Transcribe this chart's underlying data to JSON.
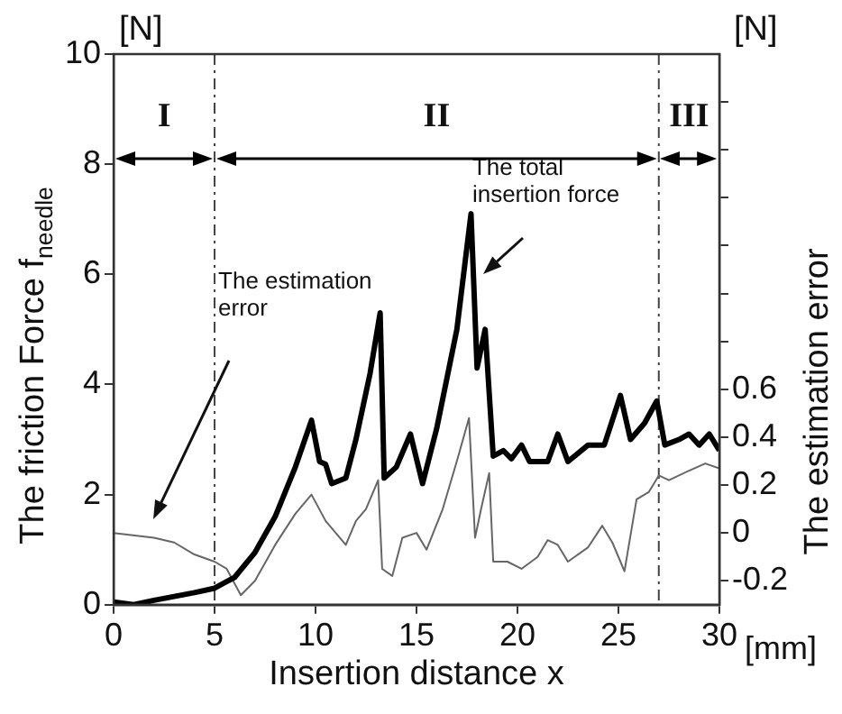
{
  "chart_data": {
    "type": "line",
    "xlabel": "Insertion distance x",
    "ylabel": "The friction Force f$_{needle}$",
    "y2label": "The estimation error",
    "xlim": [
      0,
      30
    ],
    "xticks": [
      0,
      5,
      10,
      15,
      20,
      25,
      30
    ],
    "ylim": [
      0,
      10
    ],
    "yticks": [
      0,
      2,
      4,
      6,
      8,
      10
    ],
    "y2lim": [
      -0.3,
      2.0
    ],
    "y2ticks": [
      -0.2,
      0,
      0.2,
      0.4,
      0.6,
      {
        "value": 0.8,
        "label": null
      },
      {
        "value": 1.0,
        "label": null
      },
      {
        "value": 1.2,
        "label": null
      },
      {
        "value": 1.4,
        "label": null
      },
      {
        "value": 1.6,
        "label": null
      },
      {
        "value": 1.8,
        "label": null
      }
    ],
    "grid": false,
    "legend": false,
    "marker": "none",
    "line_style": "solid",
    "series": [
      {
        "color": "#000000",
        "x": [
          0,
          1,
          2,
          3,
          4,
          5,
          6,
          7,
          8,
          9,
          9.8,
          10.2,
          10.5,
          10.8,
          11.5,
          12,
          12.7,
          13.2,
          13.4,
          14,
          14.7,
          15.3,
          16,
          17,
          17.7,
          18.0,
          18.4,
          18.8,
          19.3,
          19.7,
          20.2,
          20.6,
          21.5,
          22,
          22.5,
          23.5,
          24.3,
          25.1,
          25.6,
          26.3,
          26.9,
          27.3,
          28,
          28.5,
          29,
          29.5,
          30
        ],
        "values": [
          0.05,
          0.0,
          0.08,
          0.15,
          0.22,
          0.3,
          0.5,
          0.95,
          1.6,
          2.5,
          3.35,
          2.6,
          2.55,
          2.2,
          2.3,
          3.0,
          4.2,
          5.3,
          2.3,
          2.5,
          3.1,
          2.2,
          3.2,
          5.0,
          7.1,
          4.3,
          5.0,
          2.7,
          2.8,
          2.65,
          2.9,
          2.6,
          2.6,
          3.1,
          2.6,
          2.9,
          2.9,
          3.8,
          3.0,
          3.3,
          3.7,
          2.9,
          3.0,
          3.1,
          2.9,
          3.1,
          2.8
        ]
      },
      {
        "color": "#666666",
        "axis": "y2",
        "x": [
          0,
          2,
          3,
          4,
          5,
          5.6,
          6.3,
          7,
          8,
          9,
          9.8,
          10.5,
          11,
          11.5,
          12,
          12.5,
          13.1,
          13.3,
          13.8,
          14.3,
          15,
          15.5,
          16.3,
          17,
          17.6,
          17.9,
          18.2,
          18.6,
          18.8,
          19.5,
          20.2,
          21,
          21.5,
          22,
          22.5,
          23.5,
          24.2,
          24.7,
          25.3,
          25.9,
          26.5,
          27,
          27.5,
          28.5,
          29.3,
          30
        ],
        "values": [
          0.0,
          -0.02,
          -0.04,
          -0.09,
          -0.12,
          -0.15,
          -0.26,
          -0.2,
          -0.05,
          0.08,
          0.16,
          0.05,
          0.0,
          -0.05,
          0.05,
          0.1,
          0.22,
          -0.15,
          -0.18,
          -0.02,
          0.0,
          -0.07,
          0.1,
          0.3,
          0.48,
          -0.02,
          0.1,
          0.25,
          -0.12,
          -0.12,
          -0.15,
          -0.1,
          -0.03,
          -0.05,
          -0.12,
          -0.06,
          0.03,
          -0.04,
          -0.16,
          0.14,
          0.17,
          0.24,
          0.22,
          0.26,
          0.29,
          0.27
        ]
      }
    ],
    "ref_lines": [
      {
        "axis": "x",
        "value": 5,
        "line_style": "dashdot"
      },
      {
        "axis": "x",
        "value": 27,
        "line_style": "dashdot"
      }
    ],
    "annotations": [
      "[N]",
      "[N]",
      "[mm]",
      "I",
      "II",
      "III",
      "The estimation error",
      {
        "text": "The total insertion force",
        "x": 18.3,
        "y": 6.0
      }
    ]
  }
}
